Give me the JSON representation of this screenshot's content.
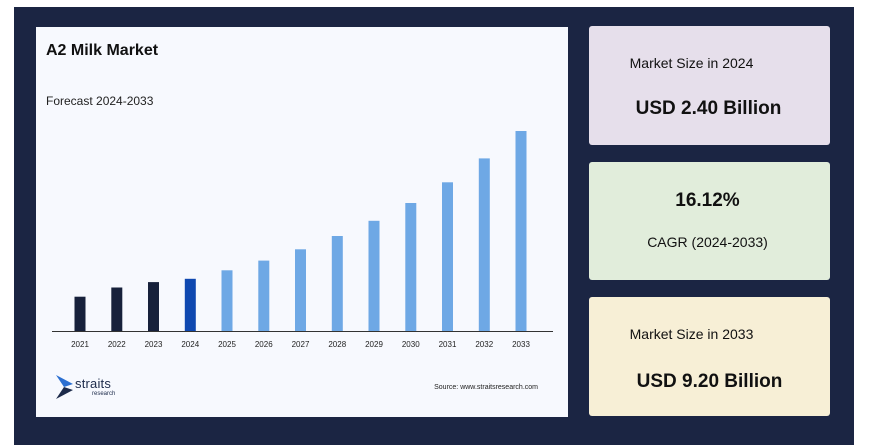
{
  "chart_data": {
    "type": "bar",
    "title": "A2 Milk Market",
    "subtitle": "Forecast 2024-2033",
    "categories": [
      "2021",
      "2022",
      "2023",
      "2024",
      "2025",
      "2026",
      "2027",
      "2028",
      "2029",
      "2030",
      "2031",
      "2032",
      "2033"
    ],
    "values": [
      1.58,
      2.0,
      2.25,
      2.4,
      2.79,
      3.24,
      3.76,
      4.37,
      5.07,
      5.89,
      6.84,
      7.94,
      9.2
    ],
    "bar_colors": [
      "#17213b",
      "#17213b",
      "#17213b",
      "#0f48b0",
      "#6ea8e5",
      "#6ea8e5",
      "#6ea8e5",
      "#6ea8e5",
      "#6ea8e5",
      "#6ea8e5",
      "#6ea8e5",
      "#6ea8e5",
      "#6ea8e5"
    ],
    "ylim": [
      0,
      9.2
    ],
    "grid": false,
    "y_axis_visible": false
  },
  "brand": {
    "name": "straits",
    "sub": "research",
    "colors": [
      "#2b6fd1",
      "#1c2a4a"
    ]
  },
  "source": "Source: www.straitsresearch.com",
  "cards": {
    "size_2024": {
      "label": "Market Size in 2024",
      "value": "USD 2.40 Billion"
    },
    "cagr": {
      "value": "16.12%",
      "label": "CAGR (2024-2033)"
    },
    "size_2033": {
      "label": "Market Size in 2033",
      "value": "USD 9.20 Billion"
    }
  }
}
